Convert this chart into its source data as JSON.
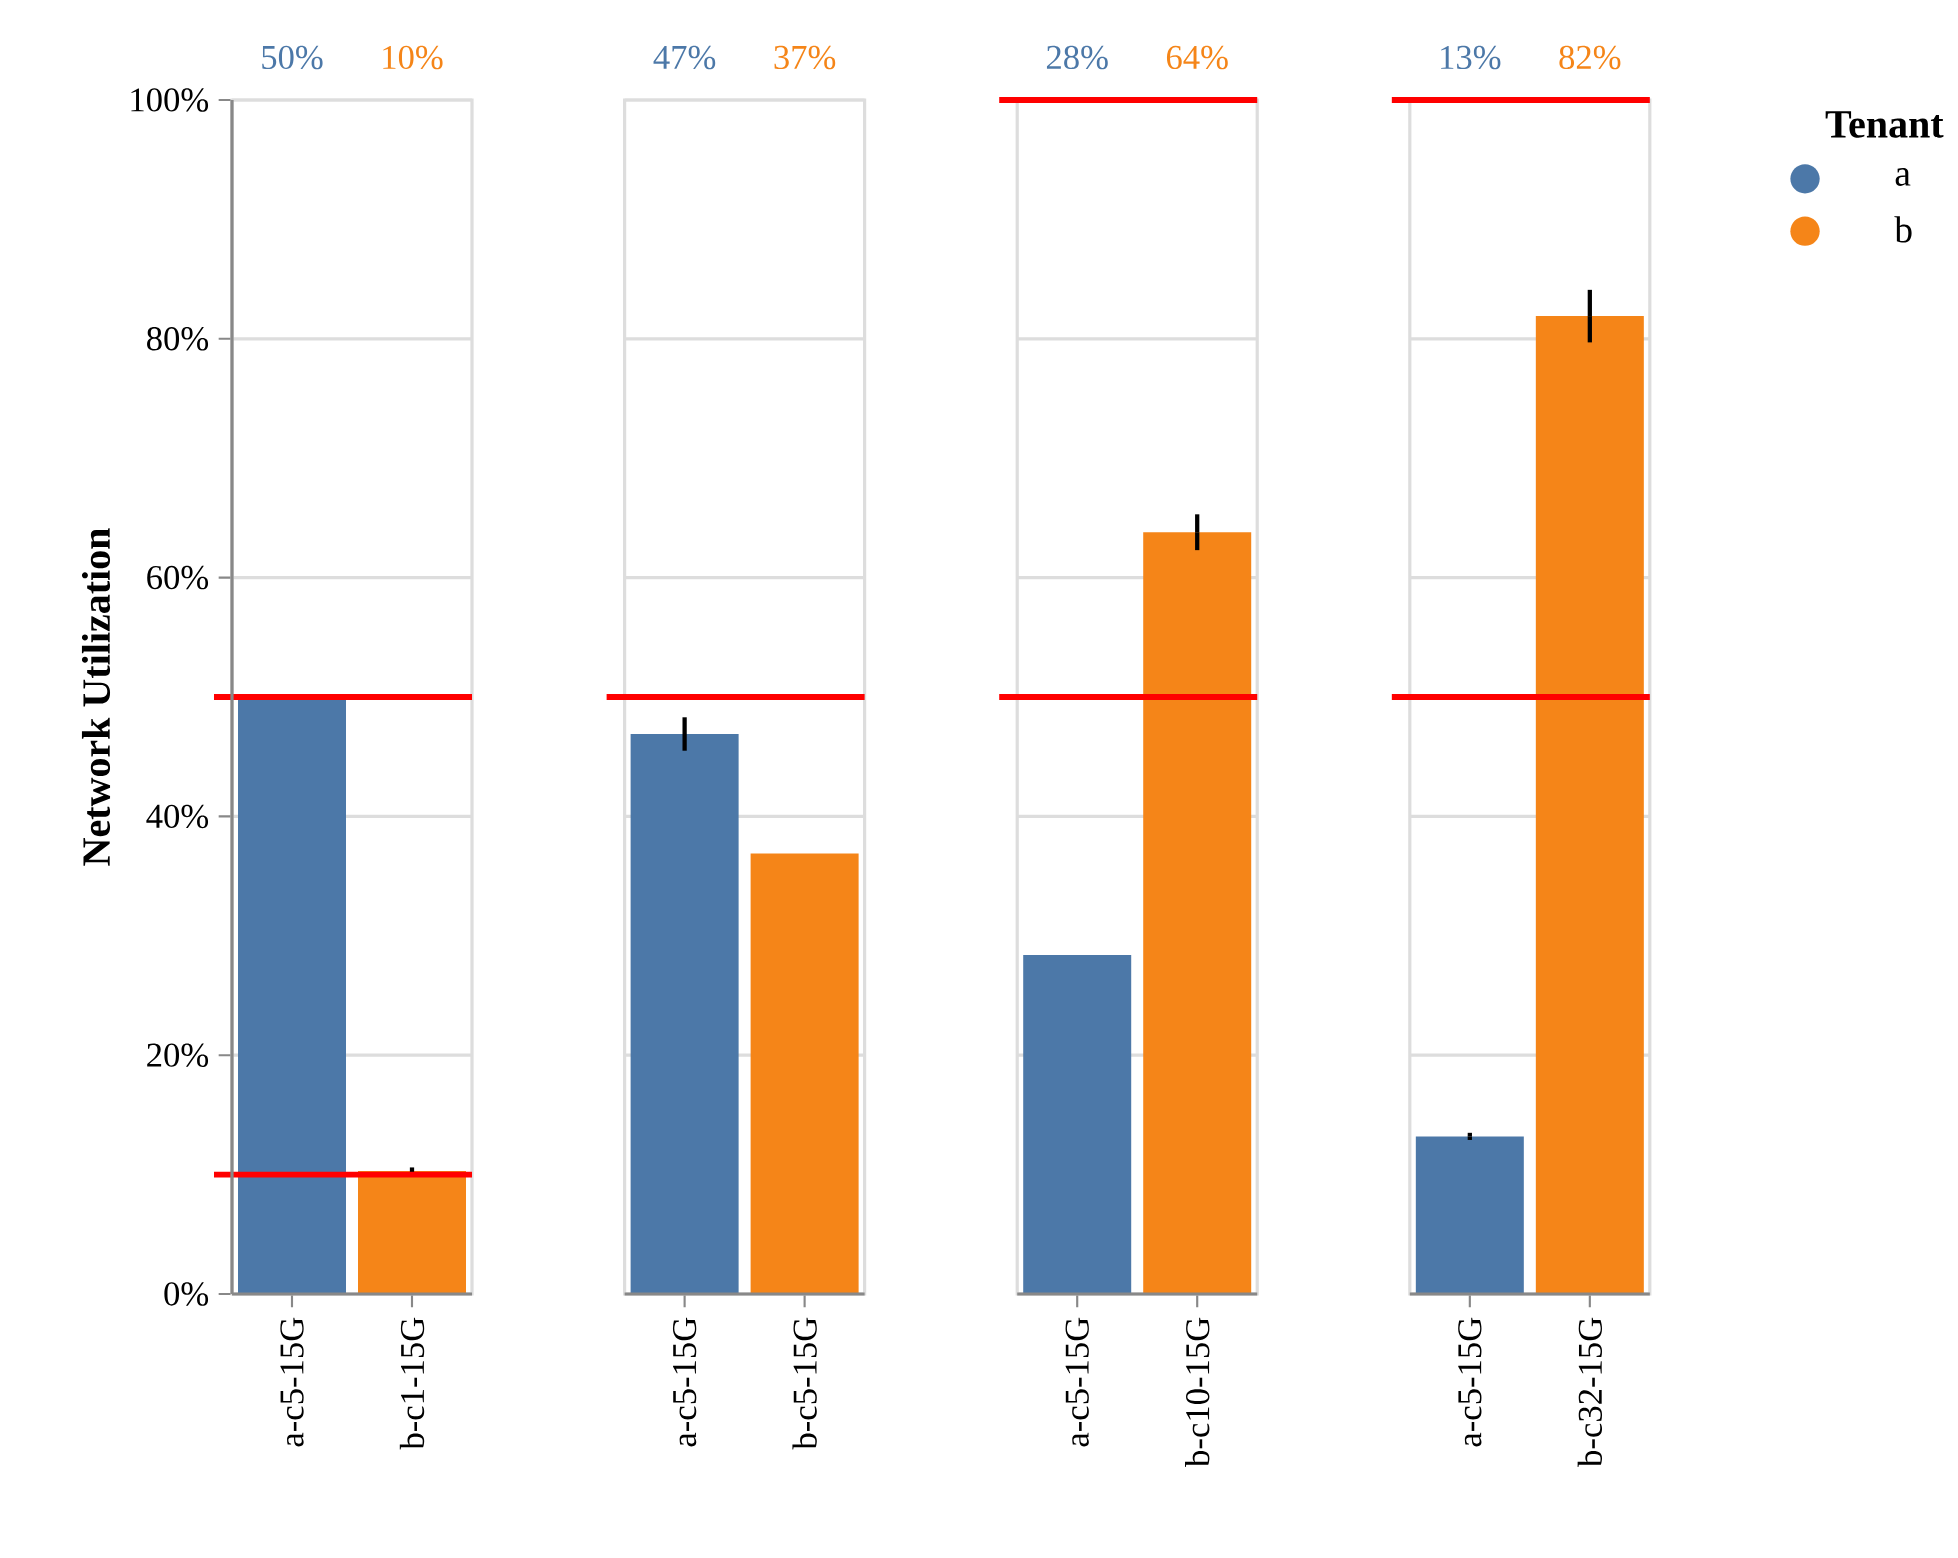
{
  "chart_data": [
    {
      "type": "bar",
      "ylabel": "Network Utilization",
      "categories": [
        "a-c5-15G",
        "b-c1-15G"
      ],
      "ylim": [
        0,
        100
      ],
      "yticks": [
        {
          "value": 0,
          "label": "0%"
        },
        {
          "value": 20,
          "label": "20%"
        },
        {
          "value": 40,
          "label": "40%"
        },
        {
          "value": 60,
          "label": "60%"
        },
        {
          "value": 80,
          "label": "80%"
        },
        {
          "value": 100,
          "label": "100%"
        }
      ],
      "grid": "y",
      "series": [
        {
          "color": "#4c78a8",
          "values": [
            50.0,
            null
          ]
        },
        {
          "color": "#f58518",
          "values": [
            null,
            10.3
          ],
          "errors": [
            null,
            0.3
          ]
        }
      ],
      "annotations": [
        "50%",
        "10%"
      ],
      "ref_lines": [
        {
          "axis": "y",
          "value": 50,
          "color": "#ff0000"
        },
        {
          "axis": "y",
          "value": 10,
          "color": "#ff0000"
        }
      ]
    },
    {
      "type": "bar",
      "categories": [
        "a-c5-15G",
        "b-c5-15G"
      ],
      "ylim": [
        0,
        100
      ],
      "yticks": [
        0,
        20,
        40,
        60,
        80,
        100
      ],
      "grid": "y",
      "tick_labels": "x",
      "series": [
        {
          "color": "#4c78a8",
          "values": [
            46.9,
            null
          ],
          "errors": [
            1.4,
            null
          ]
        },
        {
          "color": "#f58518",
          "values": [
            null,
            36.9
          ]
        }
      ],
      "annotations": [
        "47%",
        "37%"
      ],
      "ref_lines": [
        {
          "axis": "y",
          "value": 50,
          "color": "#ff0000"
        }
      ]
    },
    {
      "type": "bar",
      "categories": [
        "a-c5-15G",
        "b-c10-15G"
      ],
      "ylim": [
        0,
        100
      ],
      "yticks": [
        0,
        20,
        40,
        60,
        80,
        100
      ],
      "grid": "y",
      "tick_labels": "x",
      "series": [
        {
          "color": "#4c78a8",
          "values": [
            28.4,
            null
          ]
        },
        {
          "color": "#f58518",
          "values": [
            null,
            63.8
          ],
          "errors": [
            null,
            1.5
          ]
        }
      ],
      "annotations": [
        "28%",
        "64%"
      ],
      "ref_lines": [
        {
          "axis": "y",
          "value": 100,
          "color": "#ff0000"
        },
        {
          "axis": "y",
          "value": 50,
          "color": "#ff0000"
        }
      ]
    },
    {
      "type": "bar",
      "categories": [
        "a-c5-15G",
        "b-c32-15G"
      ],
      "ylim": [
        0,
        100
      ],
      "yticks": [
        0,
        20,
        40,
        60,
        80,
        100
      ],
      "grid": "y",
      "tick_labels": "x",
      "legend": "right",
      "legend_title": "Tenant",
      "series": [
        {
          "name": "a",
          "color": "#4c78a8",
          "values": [
            13.2,
            null
          ],
          "errors": [
            0.3,
            null
          ]
        },
        {
          "name": "b",
          "color": "#f58518",
          "values": [
            null,
            81.9
          ],
          "errors": [
            null,
            2.2
          ]
        }
      ],
      "annotations": [
        "13%",
        "82%"
      ],
      "ref_lines": [
        {
          "axis": "y",
          "value": 100,
          "color": "#ff0000"
        },
        {
          "axis": "y",
          "value": 50,
          "color": "#ff0000"
        }
      ]
    }
  ]
}
